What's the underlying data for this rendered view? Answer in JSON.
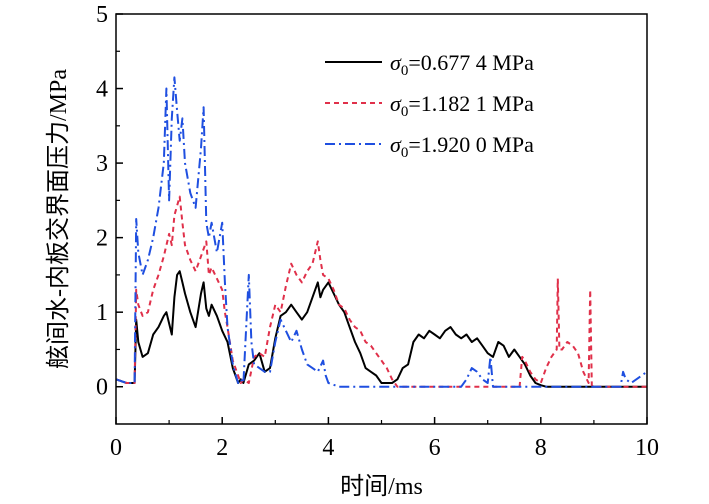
{
  "chart_data": {
    "type": "line",
    "xlabel": "时间/ms",
    "ylabel": "舷间水-内板交界面压力/MPa",
    "xlim": [
      0,
      10
    ],
    "ylim": [
      -0.5,
      5
    ],
    "xticks": [
      0,
      2,
      4,
      6,
      8,
      10
    ],
    "yticks": [
      0,
      1,
      2,
      3,
      4,
      5
    ],
    "xtick_labels": [
      "0",
      "2",
      "4",
      "6",
      "8",
      "10"
    ],
    "ytick_labels": [
      "0",
      "1",
      "2",
      "3",
      "4",
      "5"
    ],
    "grid": false,
    "legend_position": "top-right",
    "series": [
      {
        "name": "σ0=0.677 4 MPa",
        "legend_sub": "0",
        "legend_value": "=0.677 4 MPa",
        "color": "#000000",
        "dash": "solid",
        "x": [
          0,
          0.2,
          0.35,
          0.38,
          0.42,
          0.5,
          0.6,
          0.7,
          0.8,
          0.9,
          0.95,
          1.0,
          1.05,
          1.1,
          1.15,
          1.2,
          1.25,
          1.3,
          1.4,
          1.5,
          1.6,
          1.65,
          1.7,
          1.75,
          1.8,
          1.9,
          2.0,
          2.1,
          2.2,
          2.25,
          2.3,
          2.35,
          2.4,
          2.5,
          2.6,
          2.7,
          2.8,
          2.9,
          3.0,
          3.1,
          3.2,
          3.3,
          3.4,
          3.5,
          3.6,
          3.7,
          3.8,
          3.85,
          3.9,
          4.0,
          4.1,
          4.2,
          4.3,
          4.4,
          4.5,
          4.6,
          4.7,
          4.8,
          4.9,
          5.0,
          5.1,
          5.2,
          5.3,
          5.4,
          5.5,
          5.6,
          5.7,
          5.8,
          5.9,
          6.0,
          6.1,
          6.2,
          6.3,
          6.4,
          6.5,
          6.6,
          6.7,
          6.8,
          6.9,
          7.0,
          7.1,
          7.2,
          7.3,
          7.4,
          7.5,
          7.6,
          7.7,
          7.8,
          7.9,
          8.0,
          8.1,
          8.5,
          9.0,
          10.0
        ],
        "values": [
          0.1,
          0.05,
          0.05,
          0.9,
          0.6,
          0.4,
          0.45,
          0.7,
          0.8,
          0.95,
          1.0,
          0.85,
          0.7,
          1.2,
          1.5,
          1.55,
          1.4,
          1.25,
          1.0,
          0.8,
          1.25,
          1.4,
          1.05,
          0.95,
          1.1,
          0.95,
          0.75,
          0.6,
          0.25,
          0.15,
          0.05,
          0.1,
          0.05,
          0.3,
          0.35,
          0.45,
          0.2,
          0.25,
          0.65,
          0.95,
          1.0,
          1.1,
          1.0,
          0.9,
          1.0,
          1.2,
          1.4,
          1.2,
          1.3,
          1.4,
          1.25,
          1.1,
          1.0,
          0.8,
          0.6,
          0.45,
          0.25,
          0.2,
          0.15,
          0.05,
          0.05,
          0.05,
          0.1,
          0.25,
          0.3,
          0.6,
          0.7,
          0.65,
          0.75,
          0.7,
          0.65,
          0.75,
          0.8,
          0.7,
          0.65,
          0.7,
          0.6,
          0.65,
          0.55,
          0.45,
          0.4,
          0.6,
          0.55,
          0.4,
          0.5,
          0.4,
          0.3,
          0.15,
          0.05,
          0.02,
          0.0,
          0.0,
          0.0,
          0.0
        ]
      },
      {
        "name": "σ0=1.182 1 MPa",
        "legend_sub": "0",
        "legend_value": "=1.182 1 MPa",
        "color": "#e0304a",
        "dash": "5,4",
        "x": [
          0,
          0.2,
          0.35,
          0.38,
          0.42,
          0.5,
          0.6,
          0.7,
          0.8,
          0.9,
          1.0,
          1.05,
          1.1,
          1.2,
          1.25,
          1.3,
          1.4,
          1.5,
          1.6,
          1.7,
          1.75,
          1.8,
          1.9,
          2.0,
          2.05,
          2.1,
          2.2,
          2.3,
          2.35,
          2.4,
          2.5,
          2.6,
          2.7,
          2.8,
          2.9,
          3.0,
          3.1,
          3.2,
          3.3,
          3.4,
          3.5,
          3.6,
          3.7,
          3.8,
          3.85,
          3.9,
          4.0,
          4.1,
          4.2,
          4.3,
          4.4,
          4.5,
          4.6,
          4.7,
          4.8,
          4.9,
          5.0,
          5.1,
          5.2,
          5.3,
          5.4,
          5.6,
          6.0,
          6.5,
          7.0,
          7.6,
          7.65,
          7.7,
          7.8,
          7.9,
          8.0,
          8.1,
          8.2,
          8.3,
          8.32,
          8.35,
          8.4,
          8.5,
          8.6,
          8.7,
          8.8,
          8.9,
          8.93,
          8.96,
          9.0,
          9.5,
          10.0
        ],
        "values": [
          0.1,
          0.05,
          0.05,
          1.3,
          1.1,
          0.95,
          1.0,
          1.3,
          1.5,
          1.75,
          2.05,
          1.9,
          2.3,
          2.55,
          2.2,
          1.9,
          1.7,
          1.55,
          1.75,
          1.95,
          1.5,
          1.6,
          1.45,
          1.3,
          1.0,
          0.8,
          0.35,
          0.15,
          0.05,
          0.1,
          0.05,
          0.4,
          0.45,
          0.4,
          0.8,
          1.1,
          1.0,
          1.35,
          1.65,
          1.5,
          1.4,
          1.55,
          1.65,
          1.95,
          1.7,
          1.5,
          1.45,
          1.3,
          1.1,
          1.05,
          0.9,
          0.8,
          0.75,
          0.6,
          0.55,
          0.45,
          0.35,
          0.25,
          0.1,
          0.0,
          0.0,
          0.0,
          0.0,
          0.0,
          0.0,
          0.0,
          0.4,
          0.35,
          0.2,
          0.1,
          0.05,
          0.25,
          0.4,
          0.5,
          1.45,
          0.5,
          0.5,
          0.6,
          0.55,
          0.45,
          0.2,
          0.05,
          1.3,
          0.02,
          0.0,
          0.0,
          0.0
        ]
      },
      {
        "name": "σ0=1.920 0 MPa",
        "legend_sub": "0",
        "legend_value": "=1.920 0 MPa",
        "color": "#1f4fe0",
        "dash": "10,4,2,4",
        "x": [
          0,
          0.2,
          0.35,
          0.38,
          0.42,
          0.5,
          0.6,
          0.7,
          0.8,
          0.9,
          0.95,
          1.0,
          1.05,
          1.1,
          1.15,
          1.2,
          1.25,
          1.3,
          1.4,
          1.5,
          1.6,
          1.65,
          1.7,
          1.75,
          1.8,
          1.9,
          2.0,
          2.05,
          2.1,
          2.2,
          2.3,
          2.35,
          2.4,
          2.5,
          2.55,
          2.6,
          2.7,
          2.8,
          2.9,
          3.0,
          3.1,
          3.2,
          3.3,
          3.4,
          3.5,
          3.6,
          3.7,
          3.8,
          3.9,
          3.95,
          4.0,
          4.2,
          5.0,
          6.0,
          6.5,
          6.6,
          6.7,
          6.8,
          6.9,
          7.0,
          7.05,
          7.1,
          7.5,
          8.0,
          9.0,
          9.5,
          9.55,
          9.6,
          9.7,
          9.8,
          9.9,
          10.0
        ],
        "values": [
          0.1,
          0.05,
          0.05,
          2.25,
          1.8,
          1.5,
          1.7,
          2.0,
          2.4,
          3.0,
          4.0,
          2.5,
          3.6,
          4.15,
          3.7,
          3.3,
          3.6,
          3.0,
          2.6,
          2.4,
          3.2,
          3.75,
          2.2,
          2.0,
          2.2,
          1.8,
          2.2,
          1.4,
          0.8,
          0.3,
          0.05,
          0.1,
          0.05,
          1.5,
          0.6,
          0.3,
          0.25,
          0.2,
          0.2,
          0.6,
          0.9,
          0.75,
          0.6,
          0.75,
          0.5,
          0.3,
          0.25,
          0.2,
          0.35,
          0.15,
          0.05,
          0.0,
          0.0,
          0.0,
          0.0,
          0.1,
          0.25,
          0.2,
          0.1,
          0.05,
          0.4,
          0.0,
          0.0,
          0.0,
          0.0,
          0.0,
          0.2,
          0.1,
          0.05,
          0.1,
          0.15,
          0.2
        ]
      }
    ]
  }
}
